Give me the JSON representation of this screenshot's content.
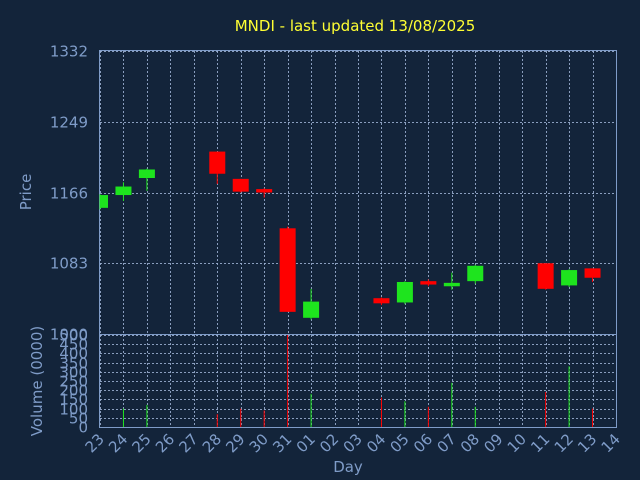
{
  "chart_data": {
    "type": "candlestick",
    "title": "MNDI - last updated 13/08/2025",
    "ylabel": "Price",
    "volume_ylabel": "Volume (0000)",
    "xlabel": "Day",
    "price_ylim": [
      1000,
      1332
    ],
    "price_ticks": [
      "1332",
      "1249",
      "1166",
      "1083",
      "1000"
    ],
    "price_tick_values": [
      1332,
      1249,
      1166,
      1083,
      1000
    ],
    "volume_ylim": [
      0,
      500
    ],
    "volume_ticks": [
      "500",
      "450",
      "400",
      "350",
      "300",
      "250",
      "200",
      "150",
      "100",
      "50",
      "0"
    ],
    "volume_tick_values": [
      500,
      450,
      400,
      350,
      300,
      250,
      200,
      150,
      100,
      50,
      0
    ],
    "x_labels": [
      "23",
      "24",
      "25",
      "26",
      "27",
      "28",
      "29",
      "30",
      "31",
      "01",
      "02",
      "03",
      "04",
      "05",
      "06",
      "07",
      "08",
      "09",
      "10",
      "11",
      "12",
      "13",
      "14"
    ],
    "colors": {
      "up": "#1ee41e",
      "down": "#ff0000",
      "background": "#13243a",
      "text": "#7f9cc8",
      "title": "#ffff33"
    },
    "candles": [
      {
        "day": "23",
        "open": 1148,
        "close": 1163,
        "high": 1164,
        "low": 1146,
        "volume": 0
      },
      {
        "day": "24",
        "open": 1163,
        "close": 1173,
        "high": 1178,
        "low": 1156,
        "volume": 100
      },
      {
        "day": "25",
        "open": 1183,
        "close": 1193,
        "high": 1194,
        "low": 1168,
        "volume": 120
      },
      {
        "day": "28",
        "open": 1214,
        "close": 1188,
        "high": 1214,
        "low": 1176,
        "volume": 70
      },
      {
        "day": "29",
        "open": 1182,
        "close": 1167,
        "high": 1182,
        "low": 1166,
        "volume": 100
      },
      {
        "day": "30",
        "open": 1170,
        "close": 1166,
        "high": 1171,
        "low": 1160,
        "volume": 90
      },
      {
        "day": "31",
        "open": 1124,
        "close": 1026,
        "high": 1126,
        "low": 1026,
        "volume": 500
      },
      {
        "day": "01",
        "open": 1019,
        "close": 1038,
        "high": 1053,
        "low": 1017,
        "volume": 180
      },
      {
        "day": "04",
        "open": 1042,
        "close": 1036,
        "high": 1043,
        "low": 1034,
        "volume": 160
      },
      {
        "day": "05",
        "open": 1037,
        "close": 1061,
        "high": 1062,
        "low": 1035,
        "volume": 140
      },
      {
        "day": "06",
        "open": 1062,
        "close": 1058,
        "high": 1064,
        "low": 1056,
        "volume": 110
      },
      {
        "day": "07",
        "open": 1056,
        "close": 1060,
        "high": 1072,
        "low": 1052,
        "volume": 240
      },
      {
        "day": "08",
        "open": 1062,
        "close": 1080,
        "high": 1081,
        "low": 1059,
        "volume": 110
      },
      {
        "day": "11",
        "open": 1083,
        "close": 1053,
        "high": 1083,
        "low": 1052,
        "volume": 190
      },
      {
        "day": "12",
        "open": 1057,
        "close": 1075,
        "high": 1076,
        "low": 1055,
        "volume": 330
      },
      {
        "day": "13",
        "open": 1077,
        "close": 1066,
        "high": 1077,
        "low": 1061,
        "volume": 100
      }
    ]
  }
}
